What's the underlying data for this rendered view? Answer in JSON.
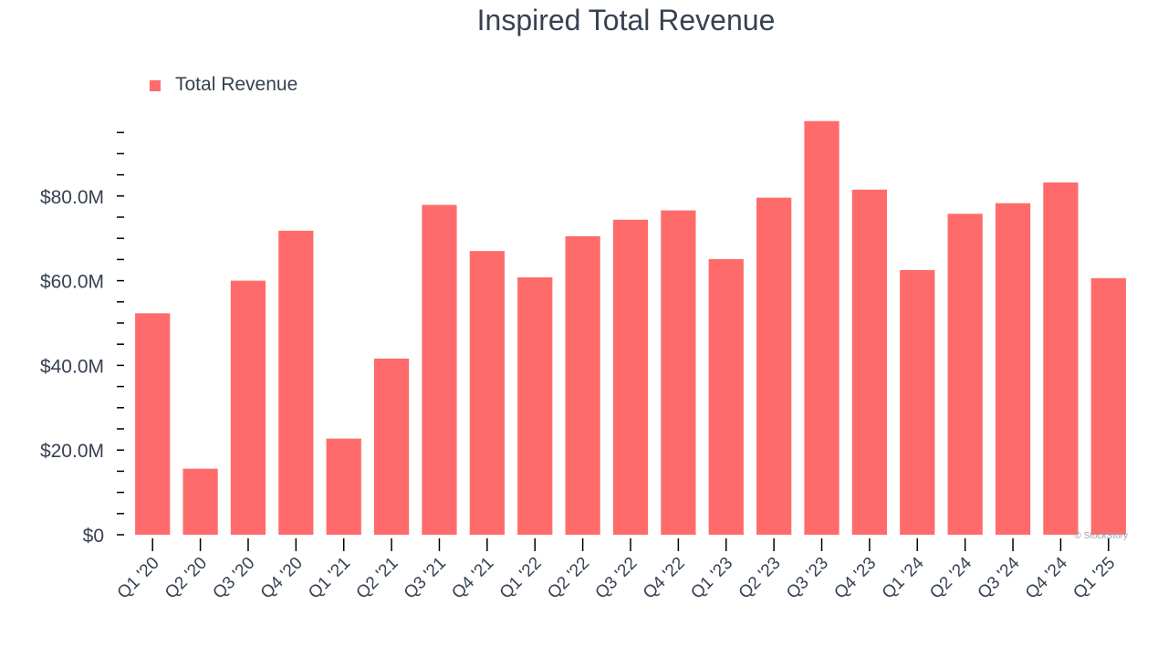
{
  "chart_data": {
    "type": "bar",
    "title": "Inspired Total Revenue",
    "legend": {
      "label": "Total Revenue",
      "position": "top-left"
    },
    "categories": [
      "Q1 '20",
      "Q2 '20",
      "Q3 '20",
      "Q4 '20",
      "Q1 '21",
      "Q2 '21",
      "Q3 '21",
      "Q4 '21",
      "Q1 '22",
      "Q2 '22",
      "Q3 '22",
      "Q4 '22",
      "Q1 '23",
      "Q2 '23",
      "Q3 '23",
      "Q4 '23",
      "Q1 '24",
      "Q2 '24",
      "Q3 '24",
      "Q4 '24",
      "Q1 '25"
    ],
    "series": [
      {
        "name": "Total Revenue",
        "values": [
          52.3,
          15.6,
          60.0,
          71.8,
          22.7,
          41.6,
          77.9,
          67.0,
          60.8,
          70.5,
          74.4,
          76.6,
          65.1,
          79.6,
          97.7,
          81.5,
          62.5,
          75.8,
          78.3,
          83.2,
          60.6
        ]
      }
    ],
    "yticks": [
      0,
      20,
      40,
      60,
      80
    ],
    "ytick_labels": [
      "$0",
      "$20.0M",
      "$40.0M",
      "$60.0M",
      "$80.0M"
    ],
    "ylim": [
      0,
      100
    ],
    "xlabel": "",
    "ylabel": "",
    "grid": false,
    "colors": {
      "bar": "#ff6b6b",
      "text": "#374151",
      "axis": "#000000",
      "credit": "#9ca3af"
    },
    "credit": "© StockStory"
  }
}
